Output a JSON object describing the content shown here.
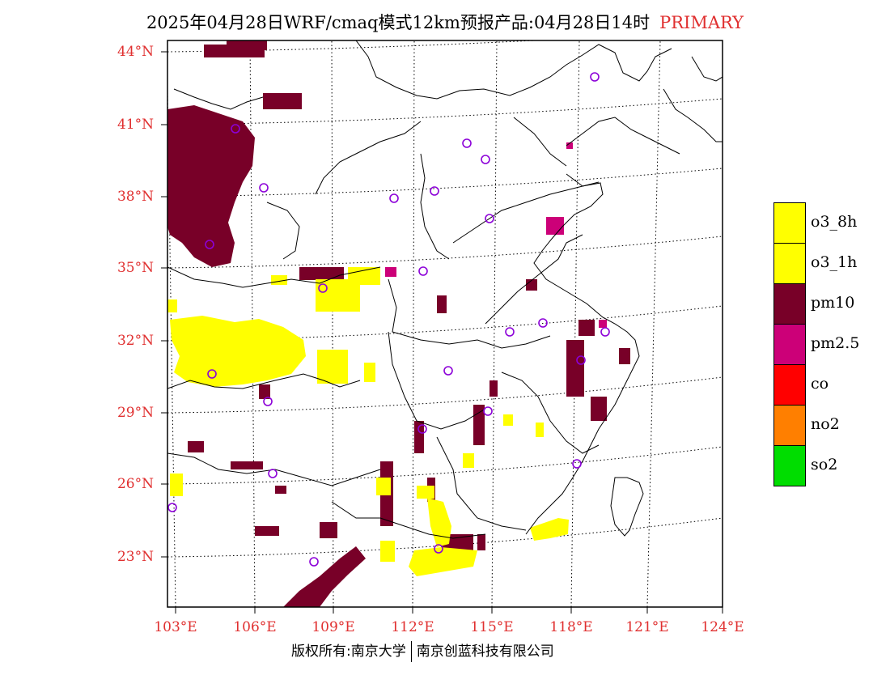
{
  "title": {
    "main": "2025年04月28日WRF/cmaq模式12km预报产品:04月28日14时",
    "tag": "PRIMARY"
  },
  "colors": {
    "o3_8h": "#ffff00",
    "o3_1h": "#ffff00",
    "pm10": "#780028",
    "pm25": "#cc0078",
    "co": "#ff0000",
    "no2": "#ff7f00",
    "so2": "#00dd00",
    "station": "#8c00d8",
    "axis_label": "#e03030"
  },
  "lat_labels": [
    "44°N",
    "41°N",
    "38°N",
    "35°N",
    "32°N",
    "29°N",
    "26°N",
    "23°N"
  ],
  "lon_labels": [
    "103°E",
    "106°E",
    "109°E",
    "112°E",
    "115°E",
    "118°E",
    "121°E",
    "124°E"
  ],
  "legend": [
    {
      "label": "o3_8h",
      "color": "#ffff00"
    },
    {
      "label": "o3_1h",
      "color": "#ffff00"
    },
    {
      "label": "pm10",
      "color": "#780028"
    },
    {
      "label": "pm2.5",
      "color": "#cc0078"
    },
    {
      "label": "co",
      "color": "#ff0000"
    },
    {
      "label": "no2",
      "color": "#ff7f00"
    },
    {
      "label": "so2",
      "color": "#00dd00"
    }
  ],
  "credit": {
    "left": "版权所有:南京大学",
    "right": "南京创蓝科技有限公司"
  }
}
